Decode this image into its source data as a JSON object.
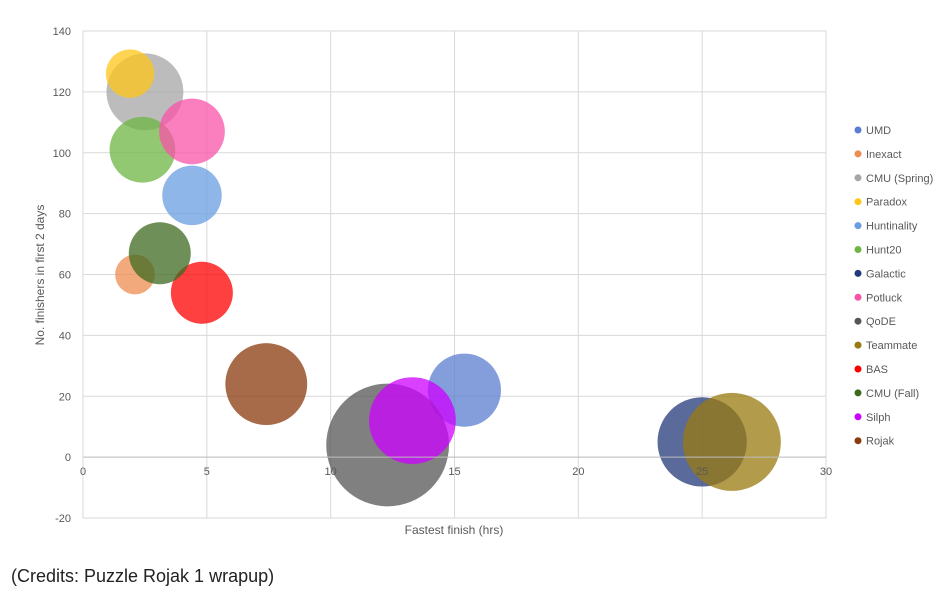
{
  "chart_data": {
    "type": "bubble",
    "xlabel": "Fastest finish (hrs)",
    "ylabel": "No. finishers in first 2 days",
    "xlim": [
      0,
      30
    ],
    "ylim": [
      -20,
      140
    ],
    "xticks": [
      0,
      5,
      10,
      15,
      20,
      25,
      30
    ],
    "yticks": [
      -20,
      0,
      20,
      40,
      60,
      80,
      100,
      120,
      140
    ],
    "grid": true,
    "legend_position": "right",
    "series": [
      {
        "name": "UMD",
        "color": "#5b7ccf",
        "x": 15.4,
        "y": 22,
        "size": 0.59
      },
      {
        "name": "Inexact",
        "color": "#ed8e50",
        "x": 2.1,
        "y": 60,
        "size": 0.32
      },
      {
        "name": "CMU (Spring)",
        "color": "#a6a6a6",
        "x": 2.5,
        "y": 120,
        "size": 0.62
      },
      {
        "name": "Paradox",
        "color": "#ffc61a",
        "x": 1.9,
        "y": 126,
        "size": 0.39
      },
      {
        "name": "Huntinality",
        "color": "#6a9de0",
        "x": 4.4,
        "y": 86,
        "size": 0.48
      },
      {
        "name": "Hunt20",
        "color": "#6eb543",
        "x": 2.4,
        "y": 101,
        "size": 0.53
      },
      {
        "name": "Galactic",
        "color": "#233a7a",
        "x": 25.0,
        "y": 5,
        "size": 0.72
      },
      {
        "name": "Potluck",
        "color": "#f953a9",
        "x": 4.4,
        "y": 107,
        "size": 0.53
      },
      {
        "name": "QoDE",
        "color": "#555555",
        "x": 12.3,
        "y": 4,
        "size": 0.99
      },
      {
        "name": "Teammate",
        "color": "#9a7a10",
        "x": 26.2,
        "y": 5,
        "size": 0.79
      },
      {
        "name": "BAS",
        "color": "#ff0000",
        "x": 4.8,
        "y": 54,
        "size": 0.5
      },
      {
        "name": "CMU (Fall)",
        "color": "#3e6a1f",
        "x": 3.1,
        "y": 67,
        "size": 0.5
      },
      {
        "name": "Silph",
        "color": "#cc00ff",
        "x": 13.3,
        "y": 12,
        "size": 0.7
      },
      {
        "name": "Rojak",
        "color": "#8b3a0e",
        "x": 7.4,
        "y": 24,
        "size": 0.66
      }
    ]
  },
  "caption": "(Credits: Puzzle Rojak 1 wrapup)"
}
